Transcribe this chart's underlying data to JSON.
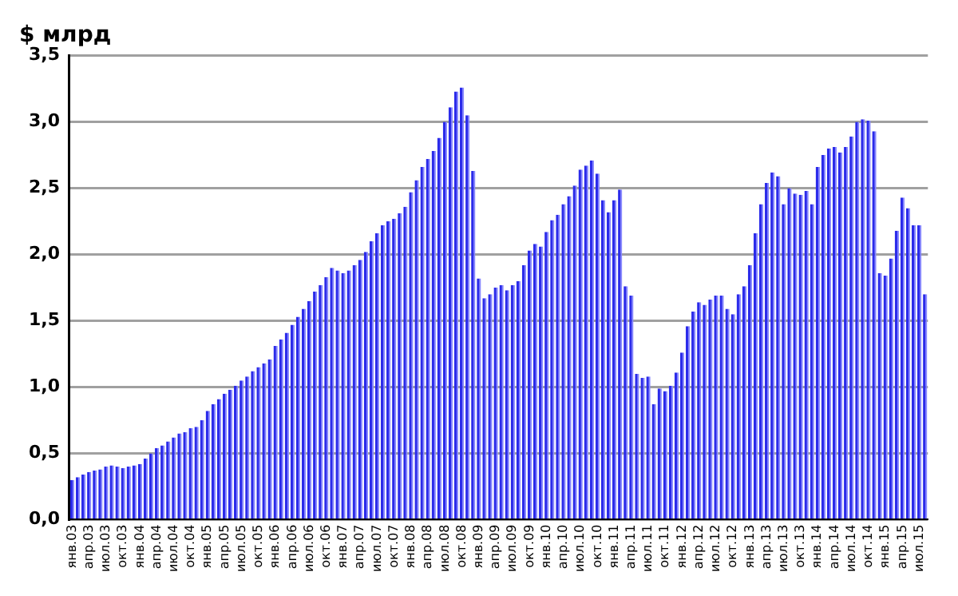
{
  "chart_data": {
    "type": "bar",
    "title": "$ млрд",
    "categories": [
      "янв.03",
      null,
      null,
      "апр.03",
      null,
      null,
      "июл.03",
      null,
      null,
      "окт.03",
      null,
      null,
      "янв.04",
      null,
      null,
      "апр.04",
      null,
      null,
      "июл.04",
      null,
      null,
      "окт.04",
      null,
      null,
      "янв.05",
      null,
      null,
      "апр.05",
      null,
      null,
      "июл.05",
      null,
      null,
      "окт.05",
      null,
      null,
      "янв.06",
      null,
      null,
      "апр.06",
      null,
      null,
      "июл.06",
      null,
      null,
      "окт.06",
      null,
      null,
      "янв.07",
      null,
      null,
      "апр.07",
      null,
      null,
      "июл.07",
      null,
      null,
      "окт.07",
      null,
      null,
      "янв.08",
      null,
      null,
      "апр.08",
      null,
      null,
      "июл.08",
      null,
      null,
      "окт.08",
      null,
      null,
      "янв.09",
      null,
      null,
      "апр.09",
      null,
      null,
      "июл.09",
      null,
      null,
      "окт.09",
      null,
      null,
      "янв.10",
      null,
      null,
      "апр.10",
      null,
      null,
      "июл.10",
      null,
      null,
      "окт.10",
      null,
      null,
      "янв.11",
      null,
      null,
      "апр.11",
      null,
      null,
      "июл.11",
      null,
      null,
      "окт.11",
      null,
      null,
      "янв.12",
      null,
      null,
      "апр.12",
      null,
      null,
      "июл.12",
      null,
      null,
      "окт.12",
      null,
      null,
      "янв.13",
      null,
      null,
      "апр.13",
      null,
      null,
      "июл.13",
      null,
      null,
      "окт.13",
      null,
      null,
      "янв.14",
      null,
      null,
      "апр.14",
      null,
      null,
      "июл.14",
      null,
      null,
      "окт.14",
      null,
      null,
      "янв.15",
      null,
      null,
      "апр.15",
      null,
      null,
      "июл.15",
      null
    ],
    "values": [
      0.3,
      0.32,
      0.34,
      0.36,
      0.37,
      0.38,
      0.4,
      0.41,
      0.4,
      0.39,
      0.4,
      0.41,
      0.42,
      0.46,
      0.5,
      0.54,
      0.56,
      0.59,
      0.62,
      0.65,
      0.66,
      0.69,
      0.7,
      0.75,
      0.82,
      0.87,
      0.91,
      0.95,
      0.98,
      1.01,
      1.05,
      1.08,
      1.12,
      1.15,
      1.18,
      1.21,
      1.31,
      1.36,
      1.41,
      1.47,
      1.53,
      1.59,
      1.65,
      1.72,
      1.77,
      1.83,
      1.9,
      1.88,
      1.86,
      1.88,
      1.92,
      1.96,
      2.02,
      2.1,
      2.16,
      2.22,
      2.25,
      2.27,
      2.31,
      2.36,
      2.47,
      2.56,
      2.66,
      2.72,
      2.78,
      2.88,
      3.0,
      3.11,
      3.23,
      3.26,
      3.05,
      2.63,
      1.82,
      1.67,
      1.7,
      1.75,
      1.77,
      1.73,
      1.77,
      1.8,
      1.92,
      2.03,
      2.08,
      2.06,
      2.17,
      2.26,
      2.3,
      2.38,
      2.44,
      2.52,
      2.64,
      2.67,
      2.71,
      2.61,
      2.41,
      2.32,
      2.41,
      2.49,
      1.76,
      1.69,
      1.1,
      1.07,
      1.08,
      0.87,
      0.99,
      0.97,
      1.01,
      1.11,
      1.26,
      1.46,
      1.57,
      1.64,
      1.62,
      1.66,
      1.69,
      1.69,
      1.59,
      1.55,
      1.7,
      1.76,
      1.92,
      2.16,
      2.38,
      2.54,
      2.62,
      2.59,
      2.38,
      2.5,
      2.46,
      2.45,
      2.48,
      2.38,
      2.66,
      2.75,
      2.8,
      2.81,
      2.77,
      2.81,
      2.89,
      3.0,
      3.02,
      3.01,
      2.93,
      1.86,
      1.84,
      1.97,
      2.18,
      2.43,
      2.35,
      2.22,
      2.22,
      1.7
    ],
    "color": "#2b2bea",
    "ylim": [
      0,
      3.5
    ],
    "yticks": [
      {
        "value": 0,
        "label": "0,0"
      },
      {
        "value": 0.5,
        "label": "0,5"
      },
      {
        "value": 1,
        "label": "1,0"
      },
      {
        "value": 1.5,
        "label": "1,5"
      },
      {
        "value": 2,
        "label": "2,0"
      },
      {
        "value": 2.5,
        "label": "2,5"
      },
      {
        "value": 3,
        "label": "3,0"
      },
      {
        "value": 3.5,
        "label": "3,5"
      }
    ],
    "grid": "y",
    "legend": false
  }
}
